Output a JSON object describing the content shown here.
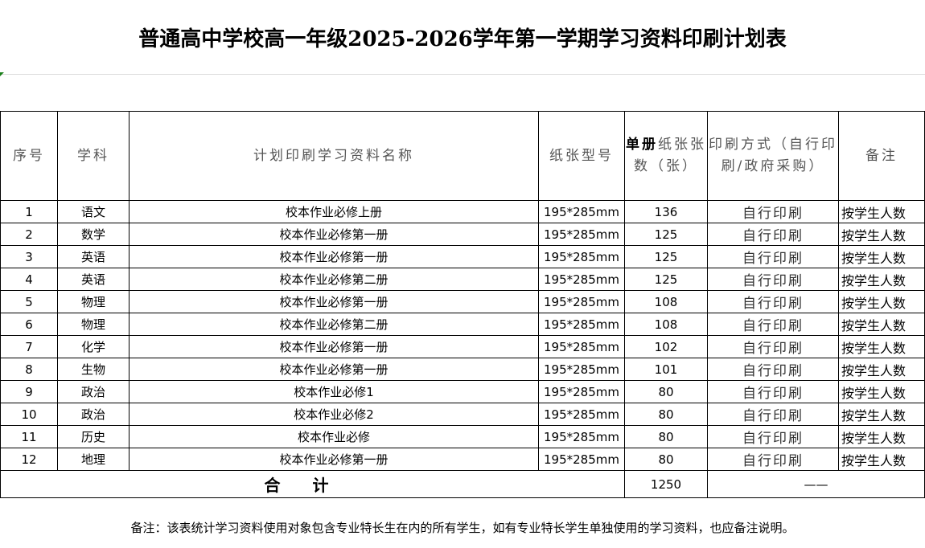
{
  "title": "普通高中学校高一年级2025-2026学年第一学期学习资料印刷计划表",
  "headers": {
    "index": "序号",
    "subject": "学科",
    "material": "计划印刷学习资料名称",
    "paper": "纸张型号",
    "sheets_bold": "单册",
    "sheets_rest": "纸张张数（张）",
    "method": "印刷方式（自行印刷/政府采购）",
    "note": "备注"
  },
  "rows": [
    {
      "index": "1",
      "subject": "语文",
      "material": "校本作业必修上册",
      "paper": "195*285mm",
      "sheets": "136",
      "method": "自行印刷",
      "note": "按学生人数"
    },
    {
      "index": "2",
      "subject": "数学",
      "material": "校本作业必修第一册",
      "paper": "195*285mm",
      "sheets": "125",
      "method": "自行印刷",
      "note": "按学生人数"
    },
    {
      "index": "3",
      "subject": "英语",
      "material": "校本作业必修第一册",
      "paper": "195*285mm",
      "sheets": "125",
      "method": "自行印刷",
      "note": "按学生人数"
    },
    {
      "index": "4",
      "subject": "英语",
      "material": "校本作业必修第二册",
      "paper": "195*285mm",
      "sheets": "125",
      "method": "自行印刷",
      "note": "按学生人数"
    },
    {
      "index": "5",
      "subject": "物理",
      "material": "校本作业必修第一册",
      "paper": "195*285mm",
      "sheets": "108",
      "method": "自行印刷",
      "note": "按学生人数"
    },
    {
      "index": "6",
      "subject": "物理",
      "material": "校本作业必修第二册",
      "paper": "195*285mm",
      "sheets": "108",
      "method": "自行印刷",
      "note": "按学生人数"
    },
    {
      "index": "7",
      "subject": "化学",
      "material": "校本作业必修第一册",
      "paper": "195*285mm",
      "sheets": "102",
      "method": "自行印刷",
      "note": "按学生人数"
    },
    {
      "index": "8",
      "subject": "生物",
      "material": "校本作业必修第一册",
      "paper": "195*285mm",
      "sheets": "101",
      "method": "自行印刷",
      "note": "按学生人数"
    },
    {
      "index": "9",
      "subject": "政治",
      "material": "校本作业必修1",
      "paper": "195*285mm",
      "sheets": "80",
      "method": "自行印刷",
      "note": "按学生人数"
    },
    {
      "index": "10",
      "subject": "政治",
      "material": "校本作业必修2",
      "paper": "195*285mm",
      "sheets": "80",
      "method": "自行印刷",
      "note": "按学生人数"
    },
    {
      "index": "11",
      "subject": "历史",
      "material": "校本作业必修",
      "paper": "195*285mm",
      "sheets": "80",
      "method": "自行印刷",
      "note": "按学生人数"
    },
    {
      "index": "12",
      "subject": "地理",
      "material": "校本作业必修第一册",
      "paper": "195*285mm",
      "sheets": "80",
      "method": "自行印刷",
      "note": "按学生人数"
    }
  ],
  "total": {
    "label": "合计",
    "sheets": "1250",
    "method": "——"
  },
  "footnote": "备注：该表统计学习资料使用对象包含专业特长生在内的所有学生，如有专业特长学生单独使用的学习资料，也应备注说明。"
}
